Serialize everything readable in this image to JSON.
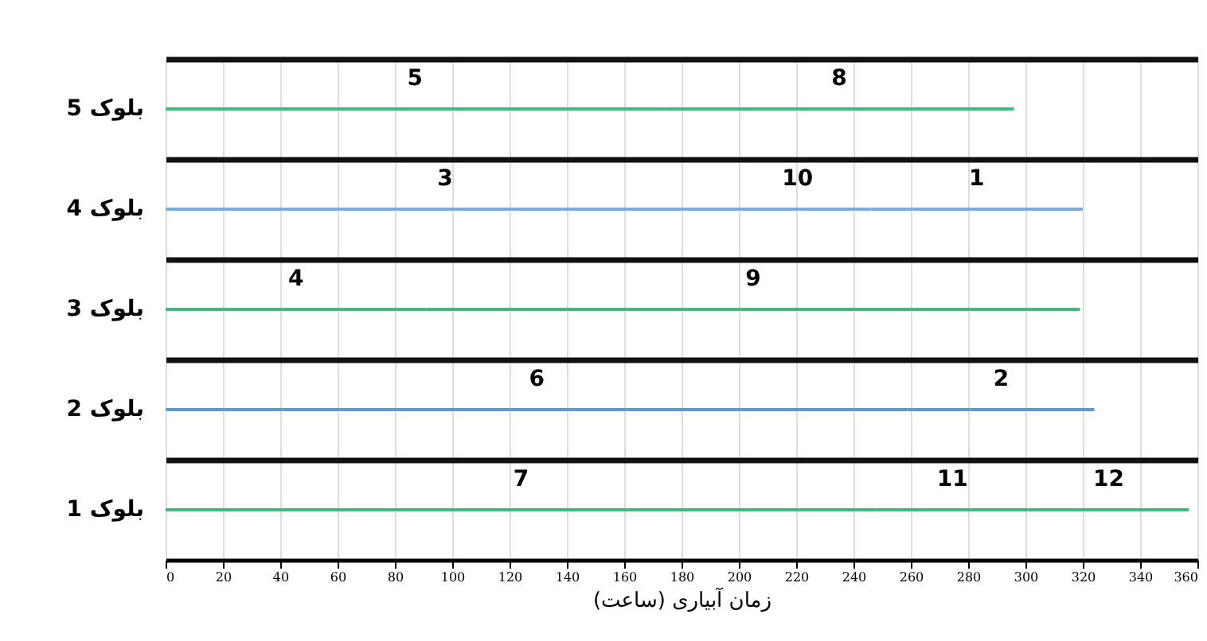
{
  "chart_data": {
    "type": "bar",
    "orientation": "horizontal",
    "stacked": true,
    "xlabel": "زمان آبیاری (ساعت)",
    "categories": [
      "بلوک 5",
      "بلوک 4",
      "بلوک 3",
      "بلوک 2",
      "بلوک 1"
    ],
    "series": [
      {
        "name": "5",
        "color": "#3dbb7a",
        "values": [
          174,
          null,
          null,
          null,
          null
        ]
      },
      {
        "name": "8",
        "color": "#3dbb7a",
        "values": [
          122,
          null,
          null,
          null,
          null
        ]
      },
      {
        "name": "3",
        "color": "#7aaee0",
        "values": [
          null,
          195,
          null,
          null,
          null
        ]
      },
      {
        "name": "10",
        "color": "#7aaee0",
        "values": [
          null,
          51,
          null,
          null,
          null
        ]
      },
      {
        "name": "1",
        "color": "#7aaee0",
        "values": [
          null,
          74,
          null,
          null,
          null
        ]
      },
      {
        "name": "4",
        "color": "#3dbb7a",
        "values": [
          null,
          null,
          91,
          null,
          null
        ]
      },
      {
        "name": "9",
        "color": "#3dbb7a",
        "values": [
          null,
          null,
          228,
          null,
          null
        ]
      },
      {
        "name": "6",
        "color": "#5b9bd5",
        "values": [
          null,
          null,
          null,
          259,
          null
        ]
      },
      {
        "name": "2",
        "color": "#5b9bd5",
        "values": [
          null,
          null,
          null,
          65,
          null
        ]
      },
      {
        "name": "7",
        "color": "#3dbb7a",
        "values": [
          null,
          null,
          null,
          null,
          248
        ]
      },
      {
        "name": "11",
        "color": "#3dbb7a",
        "values": [
          null,
          null,
          null,
          null,
          53
        ]
      },
      {
        "name": "12",
        "color": "#3dbb7a",
        "values": [
          null,
          null,
          null,
          null,
          56
        ]
      }
    ],
    "xlim": [
      0,
      360
    ],
    "xticks": [
      0,
      20,
      40,
      60,
      80,
      100,
      120,
      140,
      160,
      180,
      200,
      220,
      240,
      260,
      280,
      300,
      320,
      340,
      360
    ],
    "grid": true,
    "legend": false
  }
}
